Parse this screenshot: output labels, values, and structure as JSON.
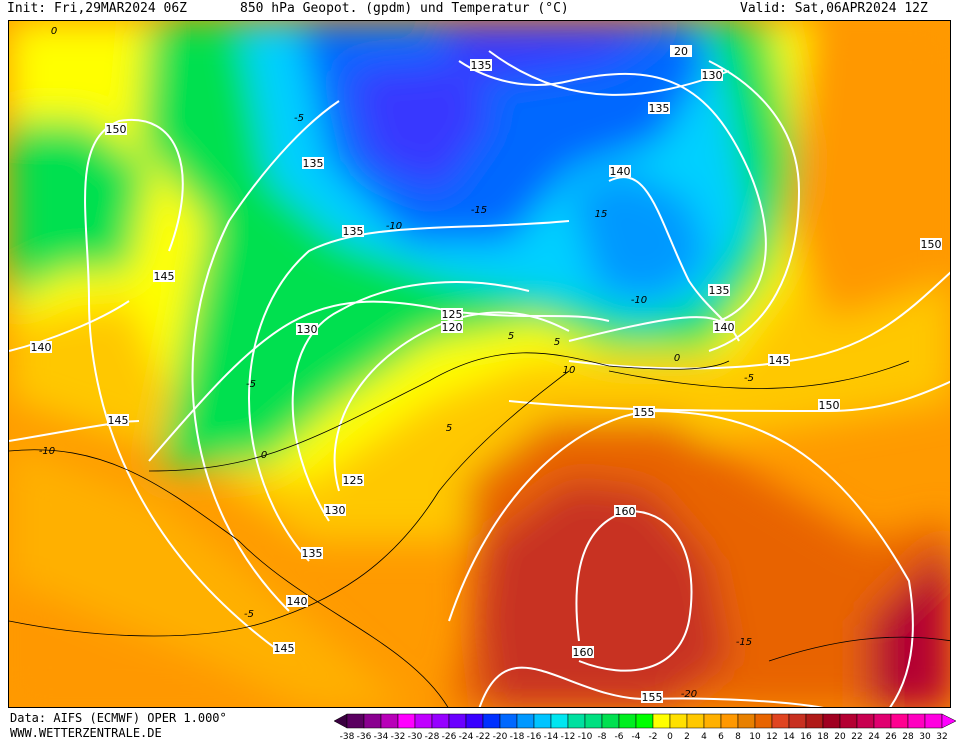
{
  "header": {
    "init": "Init: Fri,29MAR2024 06Z",
    "title": "850 hPa Geopot. (gpdm) und Temperatur (°C)",
    "valid": "Valid: Sat,06APR2024 12Z"
  },
  "footer": {
    "data_source": "Data: AIFS (ECMWF) OPER 1.000°",
    "website": "WWW.WETTERZENTRALE.DE"
  },
  "colorbar": {
    "labels": [
      "-38",
      "-36",
      "-34",
      "-32",
      "-30",
      "-28",
      "-26",
      "-24",
      "-22",
      "-20",
      "-18",
      "-16",
      "-14",
      "-12",
      "-10",
      "-8",
      "-6",
      "-4",
      "-2",
      "0",
      "2",
      "4",
      "6",
      "8",
      "10",
      "12",
      "14",
      "16",
      "18",
      "20",
      "22",
      "24",
      "26",
      "28",
      "30",
      "32"
    ],
    "colors": [
      "#5a0060",
      "#8a0090",
      "#b800b8",
      "#ff00ff",
      "#c000ff",
      "#9600ff",
      "#6a00ff",
      "#3800ff",
      "#0030ff",
      "#0068ff",
      "#0098ff",
      "#00c4ff",
      "#00e6f0",
      "#00e0a0",
      "#00e080",
      "#00e050",
      "#00ee20",
      "#00ff00",
      "#ffff00",
      "#ffe000",
      "#ffc800",
      "#ffb000",
      "#ff9800",
      "#e88000",
      "#e86400",
      "#e04420",
      "#c83020",
      "#b01a18",
      "#a00020",
      "#b40032",
      "#c80050",
      "#e00070",
      "#ff0090",
      "#ff00c0",
      "#ff00e0"
    ],
    "arrow_low_color": "#3a0040",
    "arrow_high_color": "#ff00ff"
  },
  "map": {
    "geopotential_labels": [
      "135",
      "130",
      "135",
      "150",
      "135",
      "140",
      "135",
      "150",
      "145",
      "135",
      "125",
      "120",
      "140",
      "130",
      "140",
      "145",
      "150",
      "155",
      "145",
      "125",
      "130",
      "160",
      "135",
      "140",
      "145",
      "160",
      "155",
      "20"
    ],
    "temperature_labels": [
      "0",
      "-5",
      "-15",
      "-10",
      "15",
      "-10",
      "5",
      "10",
      "-5",
      "0",
      "-5",
      "-10",
      "5",
      "-5",
      "0",
      "5",
      "-15",
      "-20"
    ]
  }
}
